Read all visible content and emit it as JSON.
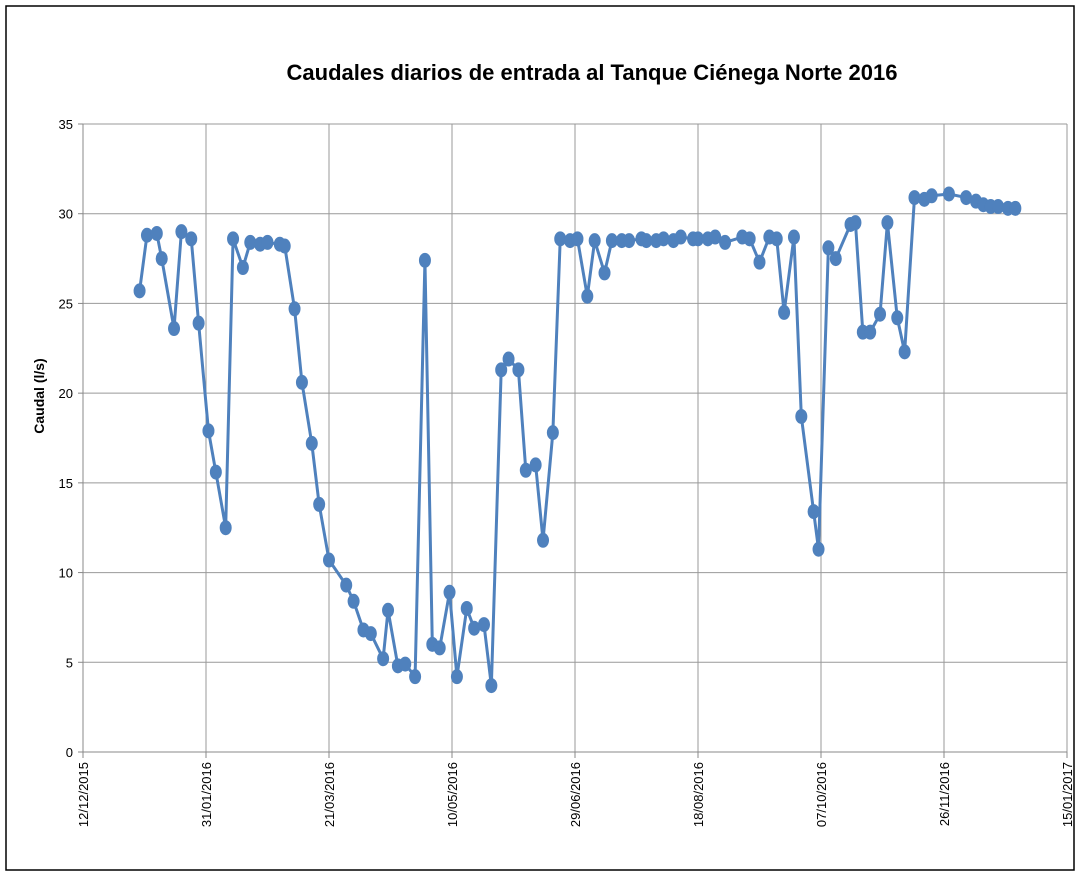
{
  "chart_data": {
    "type": "line",
    "title": "Caudales diarios de entrada al Tanque Ciénega Norte 2016",
    "y_label": "Caudal (l/s)",
    "color": "#4f81bd",
    "grid": true,
    "xlim": [
      "12/12/2015",
      "15/01/2017"
    ],
    "xticks": [
      "12/12/2015",
      "31/01/2016",
      "21/03/2016",
      "10/05/2016",
      "29/06/2016",
      "18/08/2016",
      "07/10/2016",
      "26/11/2016",
      "15/01/2017"
    ],
    "ylim": [
      0,
      35
    ],
    "yticks": [
      0,
      5,
      10,
      15,
      20,
      25,
      30,
      35
    ],
    "x": [
      "04/01/2016",
      "07/01/2016",
      "11/01/2016",
      "13/01/2016",
      "18/01/2016",
      "21/01/2016",
      "25/01/2016",
      "28/01/2016",
      "01/02/2016",
      "04/02/2016",
      "08/02/2016",
      "11/02/2016",
      "15/02/2016",
      "18/02/2016",
      "22/02/2016",
      "25/02/2016",
      "01/03/2016",
      "03/03/2016",
      "07/03/2016",
      "10/03/2016",
      "14/03/2016",
      "17/03/2016",
      "21/03/2016",
      "28/03/2016",
      "31/03/2016",
      "04/04/2016",
      "07/04/2016",
      "12/04/2016",
      "14/04/2016",
      "18/04/2016",
      "21/04/2016",
      "25/04/2016",
      "29/04/2016",
      "02/05/2016",
      "05/05/2016",
      "09/05/2016",
      "12/05/2016",
      "16/05/2016",
      "19/05/2016",
      "23/05/2016",
      "26/05/2016",
      "30/05/2016",
      "02/06/2016",
      "06/06/2016",
      "09/06/2016",
      "13/06/2016",
      "16/06/2016",
      "20/06/2016",
      "23/06/2016",
      "27/06/2016",
      "30/06/2016",
      "04/07/2016",
      "07/07/2016",
      "11/07/2016",
      "14/07/2016",
      "18/07/2016",
      "21/07/2016",
      "26/07/2016",
      "28/07/2016",
      "01/08/2016",
      "04/08/2016",
      "08/08/2016",
      "11/08/2016",
      "16/08/2016",
      "18/08/2016",
      "22/08/2016",
      "25/08/2016",
      "29/08/2016",
      "05/09/2016",
      "08/09/2016",
      "12/09/2016",
      "16/09/2016",
      "19/09/2016",
      "22/09/2016",
      "26/09/2016",
      "29/09/2016",
      "04/10/2016",
      "06/10/2016",
      "10/10/2016",
      "13/10/2016",
      "19/10/2016",
      "21/10/2016",
      "24/10/2016",
      "27/10/2016",
      "31/10/2016",
      "03/11/2016",
      "07/11/2016",
      "10/11/2016",
      "14/11/2016",
      "18/11/2016",
      "21/11/2016",
      "28/11/2016",
      "05/12/2016",
      "09/12/2016",
      "12/12/2016",
      "15/12/2016",
      "18/12/2016",
      "22/12/2016",
      "25/12/2016"
    ],
    "values": [
      25.7,
      28.8,
      28.9,
      27.5,
      23.6,
      29.0,
      28.6,
      23.9,
      17.9,
      15.6,
      12.5,
      28.6,
      27.0,
      28.4,
      28.3,
      28.4,
      28.3,
      28.2,
      24.7,
      20.6,
      17.2,
      13.8,
      10.7,
      9.3,
      8.4,
      6.8,
      6.6,
      5.2,
      7.9,
      4.8,
      4.9,
      4.2,
      27.4,
      6.0,
      5.8,
      8.9,
      4.2,
      8.0,
      6.9,
      7.1,
      3.7,
      21.3,
      21.9,
      21.3,
      15.7,
      16.0,
      11.8,
      17.8,
      28.6,
      28.5,
      28.6,
      25.4,
      28.5,
      26.7,
      28.5,
      28.5,
      28.5,
      28.6,
      28.5,
      28.5,
      28.6,
      28.5,
      28.7,
      28.6,
      28.6,
      28.6,
      28.7,
      28.4,
      28.7,
      28.6,
      27.3,
      28.7,
      28.6,
      24.5,
      28.7,
      18.7,
      13.4,
      11.3,
      28.1,
      27.5,
      29.4,
      29.5,
      23.4,
      23.4,
      24.4,
      29.5,
      24.2,
      22.3,
      30.9,
      30.8,
      31.0,
      31.1,
      30.9,
      30.7,
      30.5,
      30.4,
      30.4,
      30.3,
      30.3
    ]
  }
}
